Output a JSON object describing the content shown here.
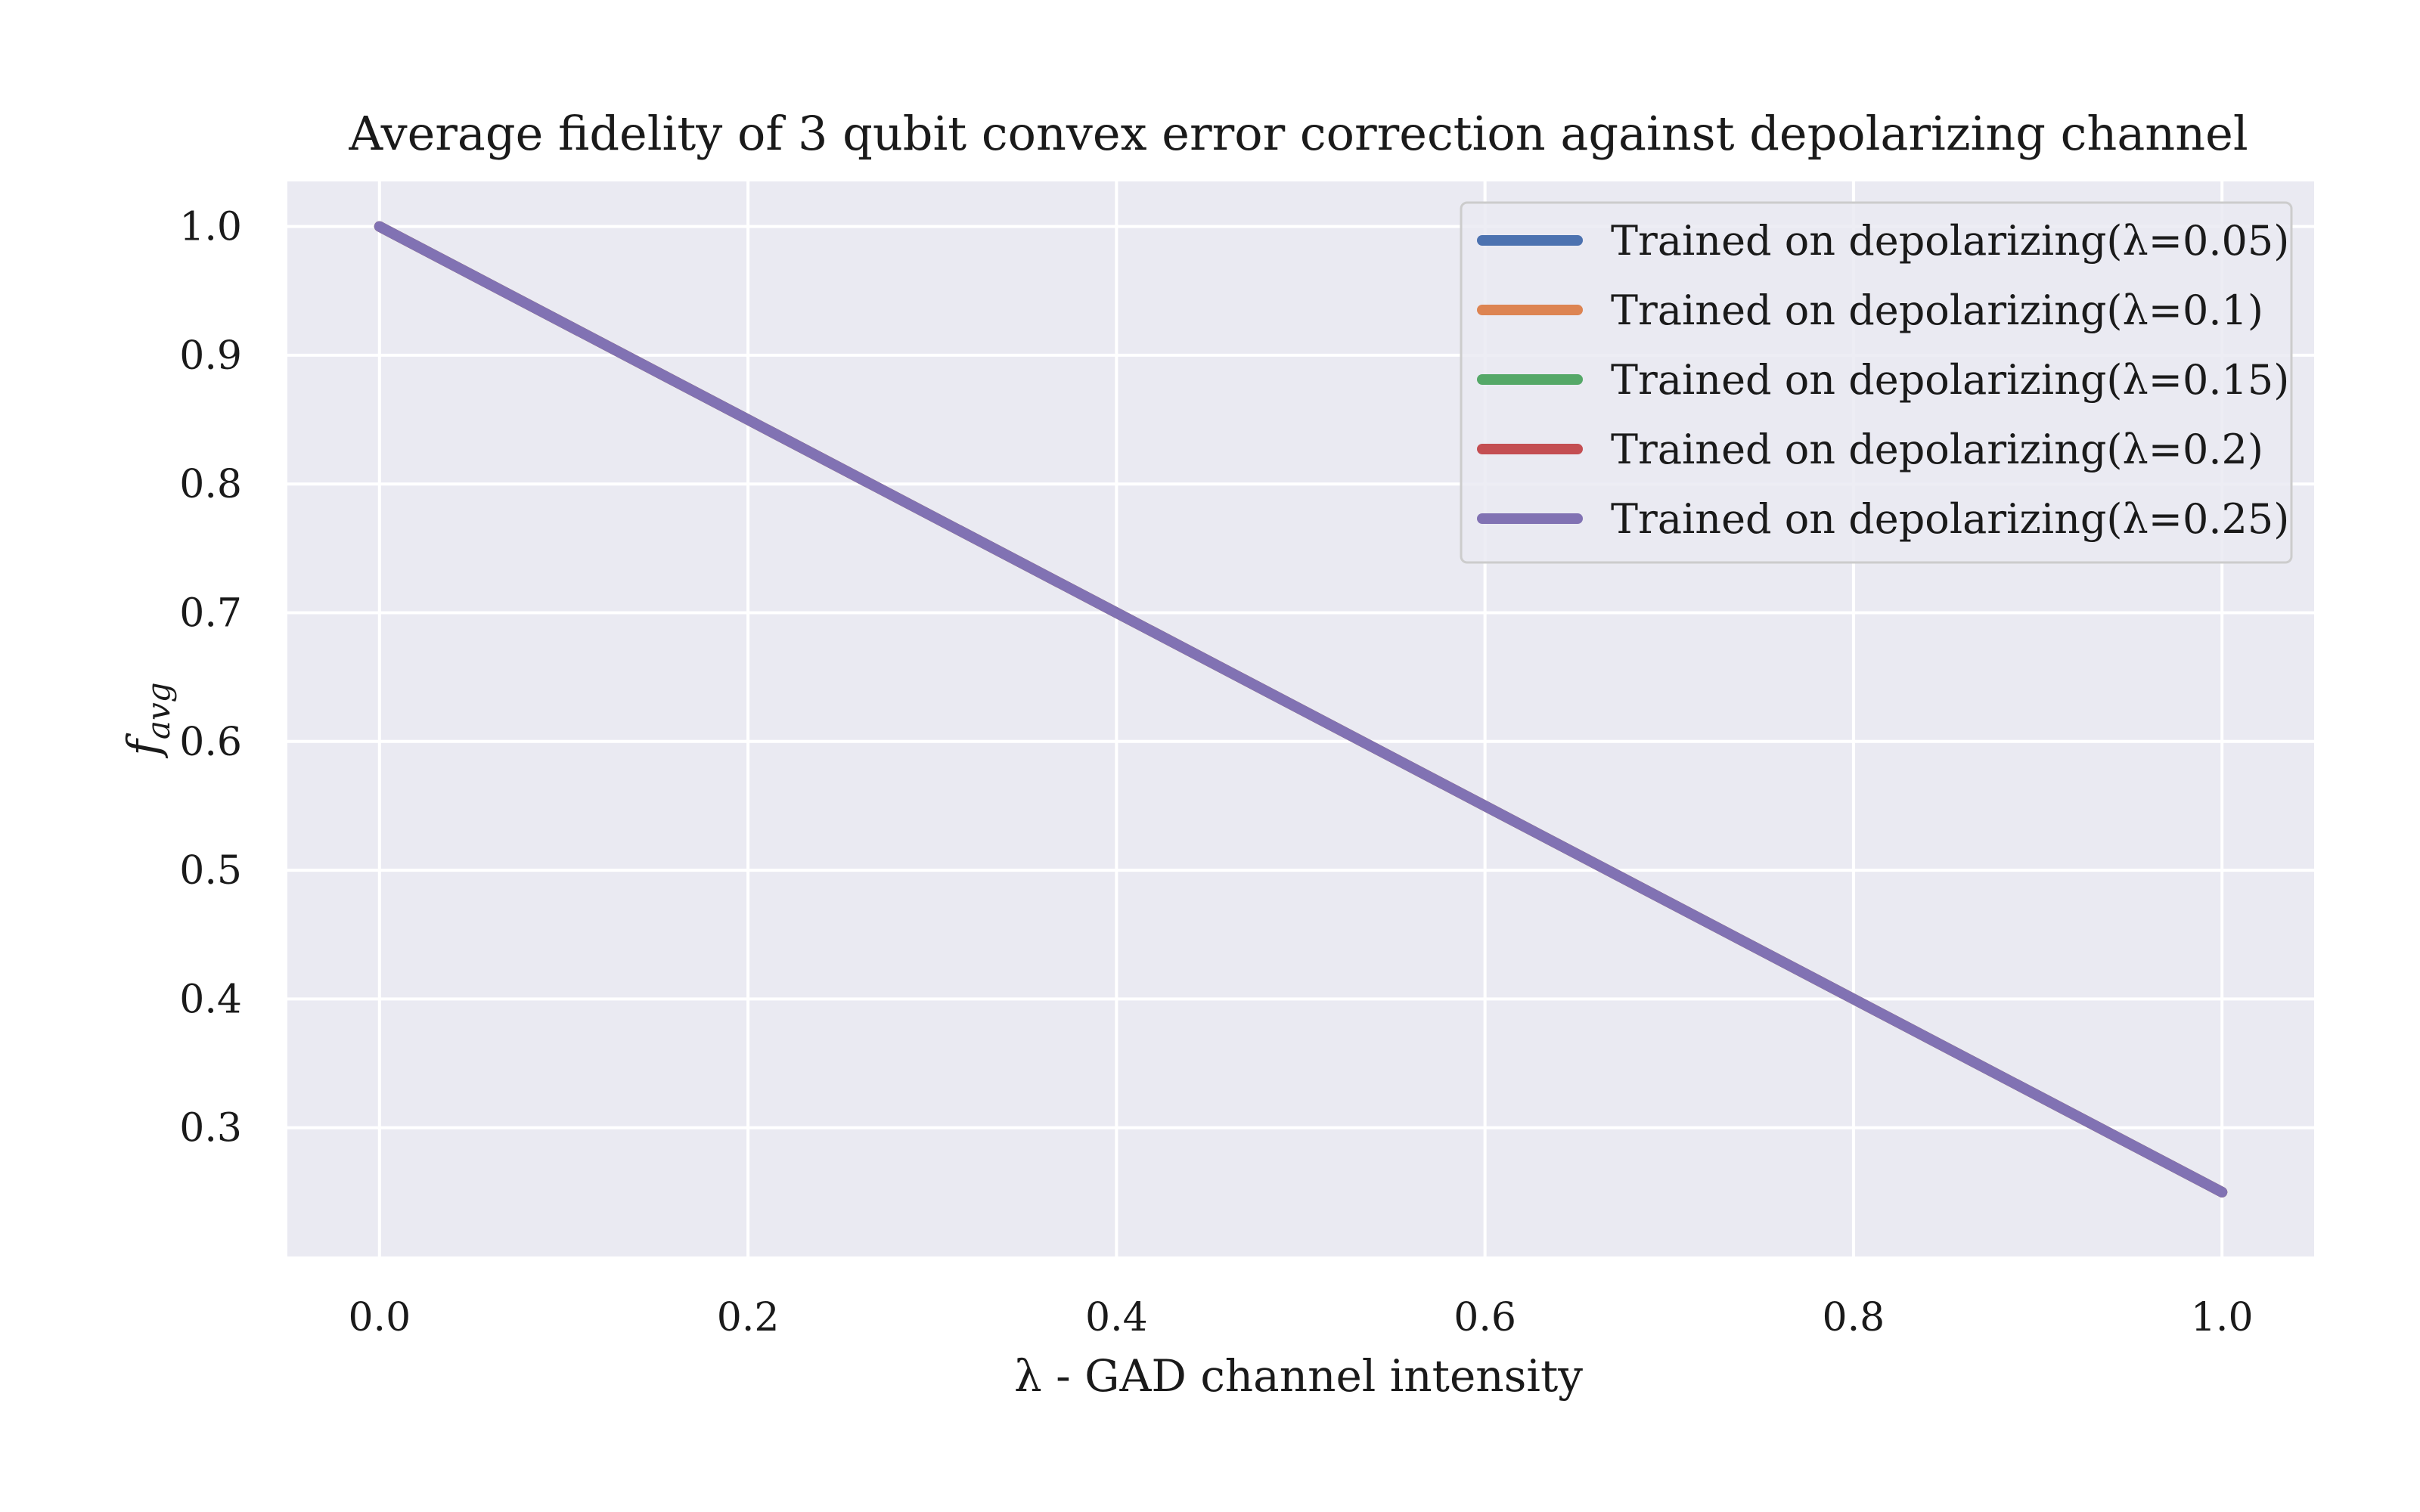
{
  "chart_data": {
    "type": "line",
    "title": "Average fidelity of 3 qubit convex error correction against depolarizing channel",
    "xlabel": "λ - GAD channel intensity",
    "ylabel_base": "f",
    "ylabel_sub": "avg",
    "xlim": [
      -0.05,
      1.05
    ],
    "ylim": [
      0.2,
      1.035
    ],
    "xticks": [
      0.0,
      0.2,
      0.4,
      0.6,
      0.8,
      1.0
    ],
    "xtick_labels": [
      "0.0",
      "0.2",
      "0.4",
      "0.6",
      "0.8",
      "1.0"
    ],
    "yticks": [
      0.3,
      0.4,
      0.5,
      0.6,
      0.7,
      0.8,
      0.9,
      1.0
    ],
    "ytick_labels": [
      "0.3",
      "0.4",
      "0.5",
      "0.6",
      "0.7",
      "0.8",
      "0.9",
      "1.0"
    ],
    "grid": true,
    "legend_position": "top-right",
    "series": [
      {
        "name": "Trained on depolarizing(λ=0.05)",
        "color": "#4c72b0",
        "x": [
          0.0,
          0.2,
          0.4,
          0.6,
          0.8,
          1.0
        ],
        "y": [
          1.0,
          0.85,
          0.7,
          0.55,
          0.4,
          0.25
        ]
      },
      {
        "name": "Trained on depolarizing(λ=0.1)",
        "color": "#dd8452",
        "x": [
          0.0,
          0.2,
          0.4,
          0.6,
          0.8,
          1.0
        ],
        "y": [
          1.0,
          0.85,
          0.7,
          0.55,
          0.4,
          0.25
        ]
      },
      {
        "name": "Trained on depolarizing(λ=0.15)",
        "color": "#55a868",
        "x": [
          0.0,
          0.2,
          0.4,
          0.6,
          0.8,
          1.0
        ],
        "y": [
          1.0,
          0.85,
          0.7,
          0.55,
          0.4,
          0.25
        ]
      },
      {
        "name": "Trained on depolarizing(λ=0.2)",
        "color": "#c44e52",
        "x": [
          0.0,
          0.2,
          0.4,
          0.6,
          0.8,
          1.0
        ],
        "y": [
          1.0,
          0.85,
          0.7,
          0.55,
          0.4,
          0.25
        ]
      },
      {
        "name": "Trained on depolarizing(λ=0.25)",
        "color": "#8172b3",
        "x": [
          0.0,
          0.2,
          0.4,
          0.6,
          0.8,
          1.0
        ],
        "y": [
          1.0,
          0.85,
          0.7,
          0.55,
          0.4,
          0.25
        ]
      }
    ],
    "colors": {
      "plot_background": "#eaeaf2",
      "grid": "#ffffff"
    }
  }
}
